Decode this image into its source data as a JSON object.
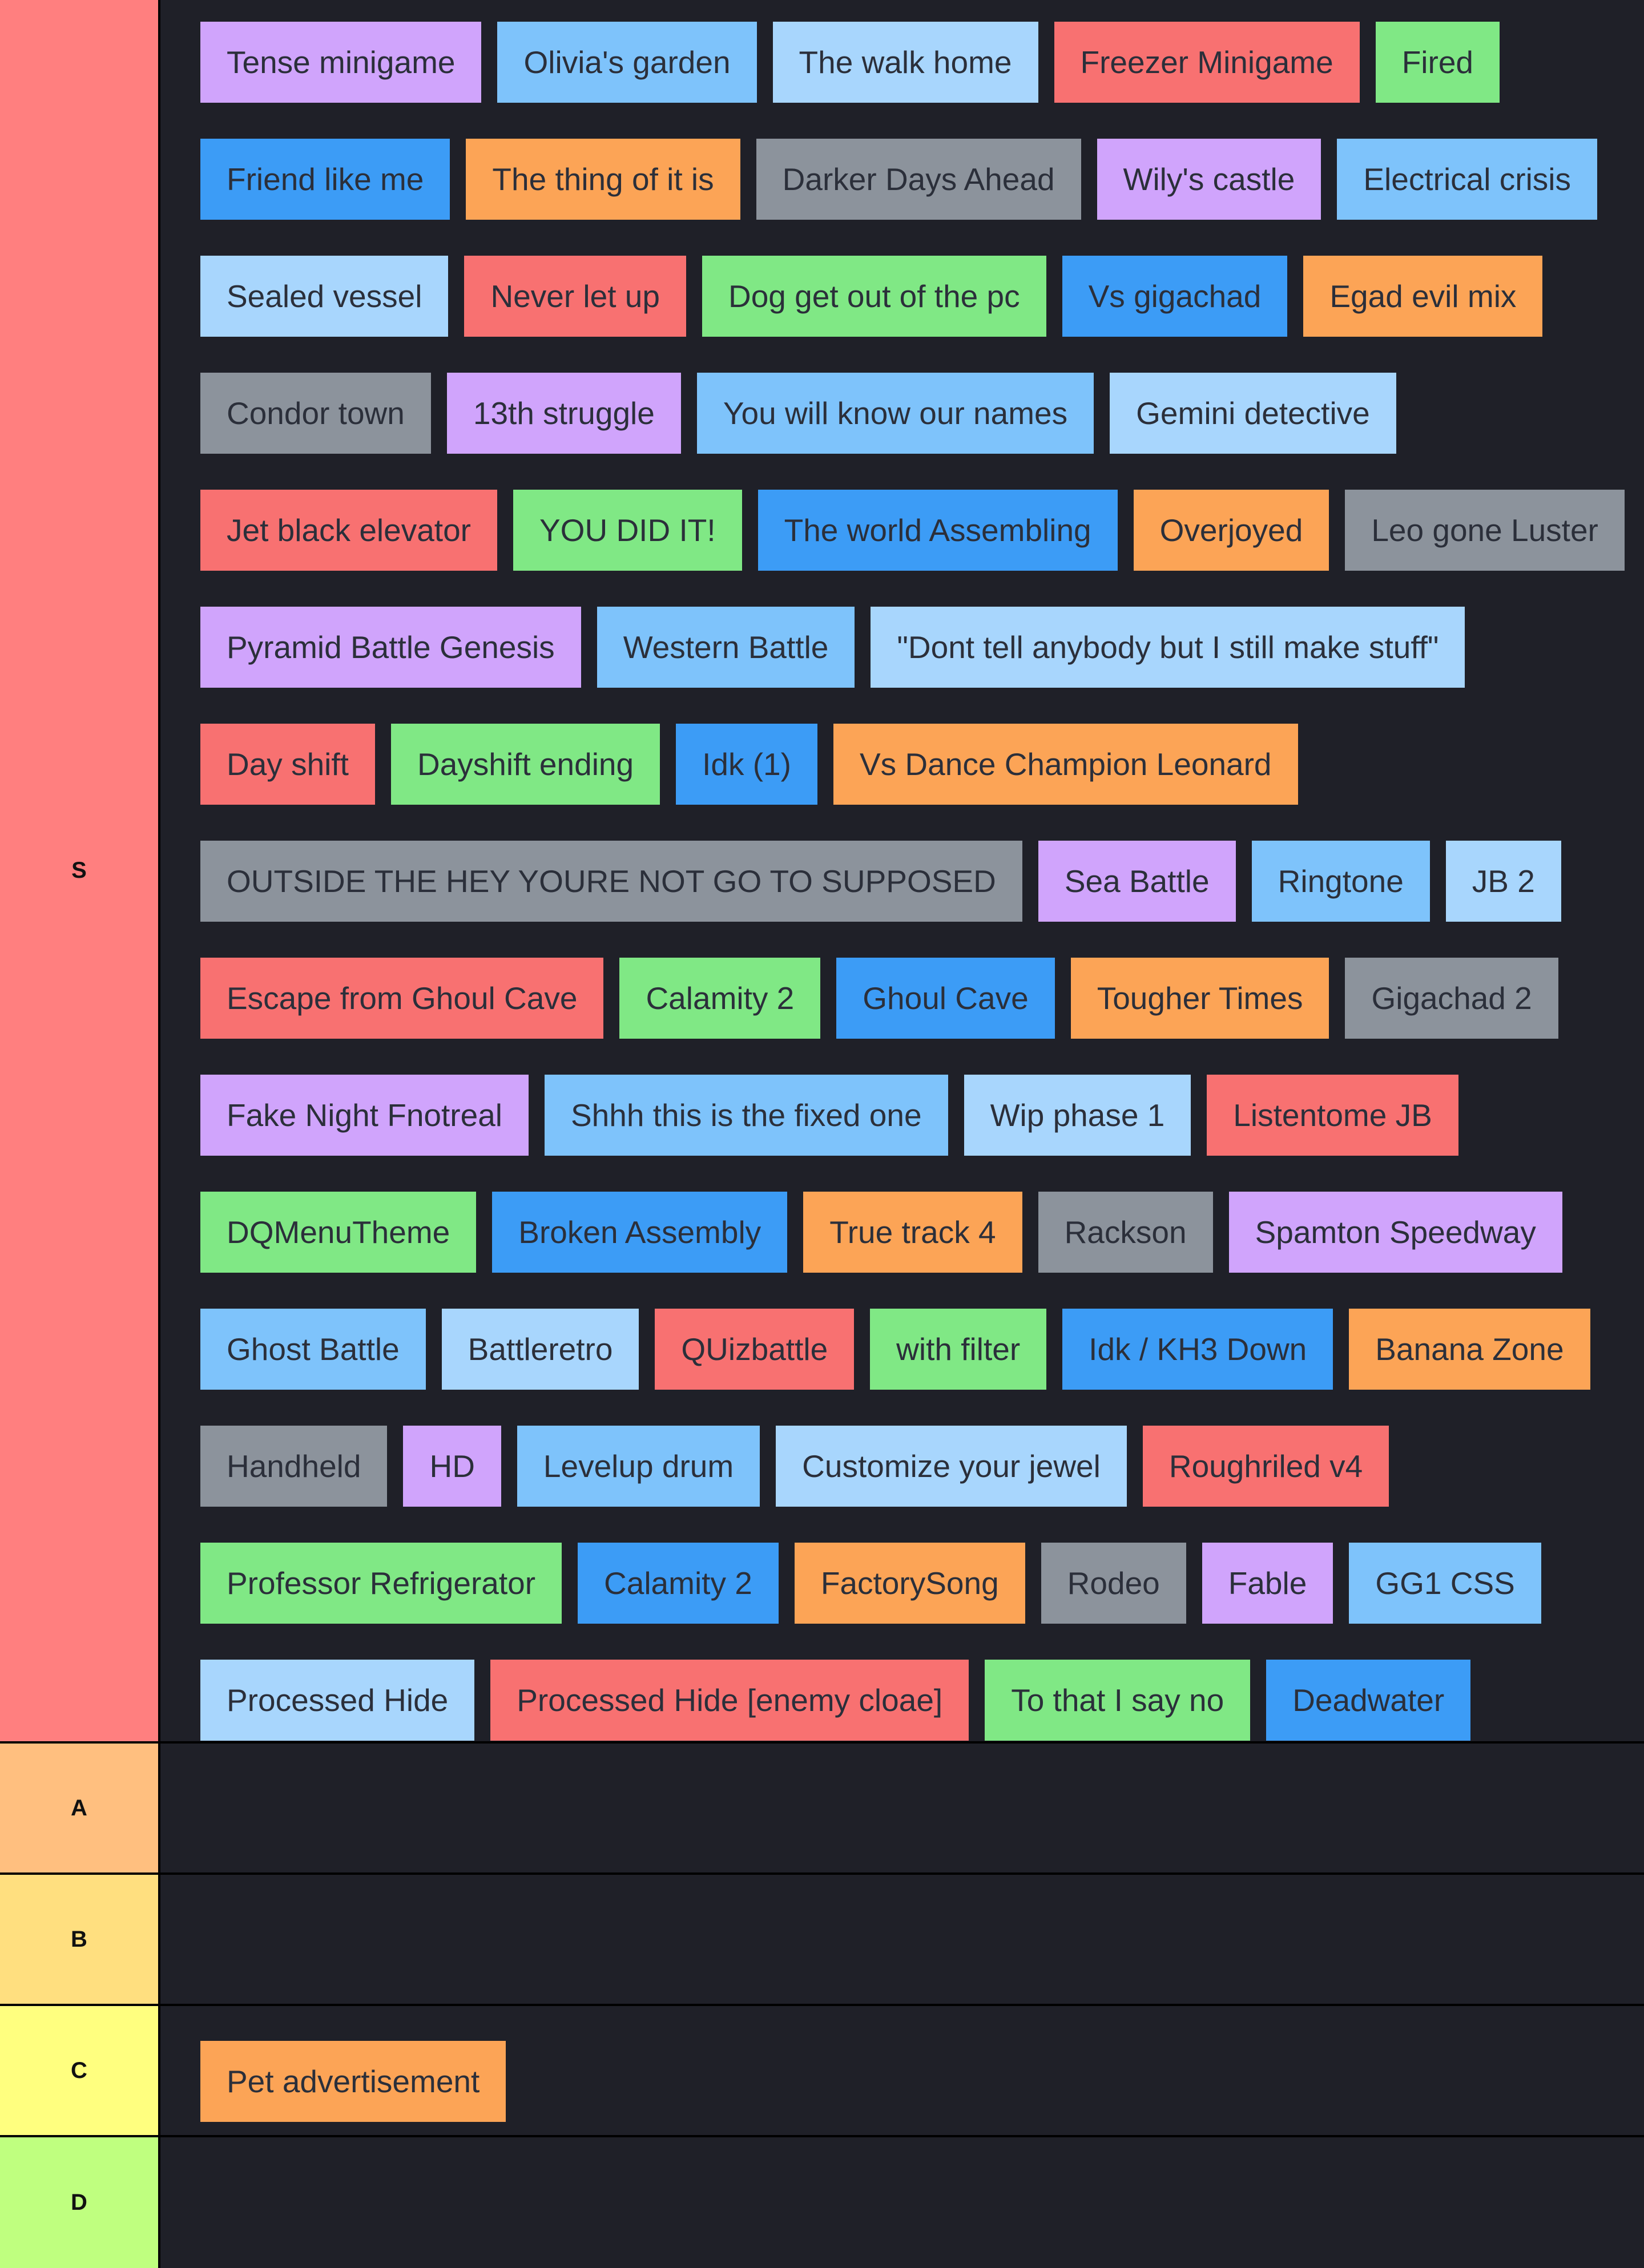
{
  "tiers": [
    {
      "label": "S",
      "color": "#ff7f7f",
      "rows": [
        [
          {
            "text": "Tense minigame",
            "color": "#d0a4fc"
          },
          {
            "text": "Olivia's garden",
            "color": "#7ec3fb"
          },
          {
            "text": "The walk home",
            "color": "#a8d6fd"
          },
          {
            "text": "Freezer Minigame",
            "color": "#f87171"
          },
          {
            "text": "Fired",
            "color": "#80e885"
          }
        ],
        [
          {
            "text": "Friend like me",
            "color": "#3c9cf6"
          },
          {
            "text": "The thing of it is",
            "color": "#fca456"
          },
          {
            "text": "Darker Days Ahead",
            "color": "#8c939c"
          },
          {
            "text": "Wily's castle",
            "color": "#d0a4fc"
          },
          {
            "text": "Electrical crisis",
            "color": "#7ec3fb"
          }
        ],
        [
          {
            "text": "Sealed vessel",
            "color": "#a8d6fd"
          },
          {
            "text": "Never let up",
            "color": "#f87171"
          },
          {
            "text": "Dog get out of the pc",
            "color": "#80e885"
          },
          {
            "text": "Vs gigachad",
            "color": "#3c9cf6"
          },
          {
            "text": "Egad evil mix",
            "color": "#fca456"
          }
        ],
        [
          {
            "text": "Condor town",
            "color": "#8c939c"
          },
          {
            "text": "13th struggle",
            "color": "#d0a4fc"
          },
          {
            "text": "You will know our names",
            "color": "#7ec3fb"
          },
          {
            "text": "Gemini detective",
            "color": "#a8d6fd"
          }
        ],
        [
          {
            "text": "Jet black elevator",
            "color": "#f87171"
          },
          {
            "text": "YOU DID IT!",
            "color": "#80e885"
          },
          {
            "text": "The world Assembling",
            "color": "#3c9cf6"
          },
          {
            "text": "Overjoyed",
            "color": "#fca456"
          },
          {
            "text": "Leo gone Luster",
            "color": "#8c939c"
          }
        ],
        [
          {
            "text": "Pyramid Battle Genesis",
            "color": "#d0a4fc"
          },
          {
            "text": "Western Battle",
            "color": "#7ec3fb"
          },
          {
            "text": "\"Dont tell anybody but I still make stuff\"",
            "color": "#a8d6fd"
          }
        ],
        [
          {
            "text": "Day shift",
            "color": "#f87171"
          },
          {
            "text": "Dayshift ending",
            "color": "#80e885"
          },
          {
            "text": "Idk (1)",
            "color": "#3c9cf6"
          },
          {
            "text": "Vs Dance Champion Leonard",
            "color": "#fca456"
          }
        ],
        [
          {
            "text": "OUTSIDE THE HEY YOURE NOT GO TO SUPPOSED",
            "color": "#8c939c"
          },
          {
            "text": "Sea Battle",
            "color": "#d0a4fc"
          },
          {
            "text": "Ringtone",
            "color": "#7ec3fb"
          },
          {
            "text": "JB 2",
            "color": "#a8d6fd"
          }
        ],
        [
          {
            "text": "Escape from Ghoul Cave",
            "color": "#f87171"
          },
          {
            "text": "Calamity 2",
            "color": "#80e885"
          },
          {
            "text": "Ghoul Cave",
            "color": "#3c9cf6"
          },
          {
            "text": "Tougher Times",
            "color": "#fca456"
          },
          {
            "text": "Gigachad 2",
            "color": "#8c939c"
          }
        ],
        [
          {
            "text": "Fake Night Fnotreal",
            "color": "#d0a4fc"
          },
          {
            "text": "Shhh this is the fixed one",
            "color": "#7ec3fb"
          },
          {
            "text": "Wip phase 1",
            "color": "#a8d6fd"
          },
          {
            "text": "Listentome JB",
            "color": "#f87171"
          }
        ],
        [
          {
            "text": "DQMenuTheme",
            "color": "#80e885"
          },
          {
            "text": "Broken Assembly",
            "color": "#3c9cf6"
          },
          {
            "text": "True track 4",
            "color": "#fca456"
          },
          {
            "text": "Rackson",
            "color": "#8c939c"
          },
          {
            "text": "Spamton Speedway",
            "color": "#d0a4fc"
          }
        ],
        [
          {
            "text": "Ghost Battle",
            "color": "#7ec3fb"
          },
          {
            "text": "Battleretro",
            "color": "#a8d6fd"
          },
          {
            "text": "QUizbattle",
            "color": "#f87171"
          },
          {
            "text": "with filter",
            "color": "#80e885"
          },
          {
            "text": "Idk / KH3 Down",
            "color": "#3c9cf6"
          },
          {
            "text": "Banana Zone",
            "color": "#fca456"
          }
        ],
        [
          {
            "text": "Handheld",
            "color": "#8c939c"
          },
          {
            "text": "HD",
            "color": "#d0a4fc"
          },
          {
            "text": "Levelup drum",
            "color": "#7ec3fb"
          },
          {
            "text": "Customize your jewel",
            "color": "#a8d6fd"
          },
          {
            "text": "Roughriled v4",
            "color": "#f87171"
          }
        ],
        [
          {
            "text": "Professor Refrigerator",
            "color": "#80e885"
          },
          {
            "text": "Calamity 2",
            "color": "#3c9cf6"
          },
          {
            "text": "FactorySong",
            "color": "#fca456"
          },
          {
            "text": "Rodeo",
            "color": "#8c939c"
          },
          {
            "text": "Fable",
            "color": "#d0a4fc"
          },
          {
            "text": "GG1 CSS",
            "color": "#7ec3fb"
          }
        ],
        [
          {
            "text": "Processed Hide",
            "color": "#a8d6fd"
          },
          {
            "text": "Processed Hide [enemy cloae]",
            "color": "#f87171"
          },
          {
            "text": "To that I say no",
            "color": "#80e885"
          },
          {
            "text": "Deadwater",
            "color": "#3c9cf6"
          }
        ]
      ]
    },
    {
      "label": "A",
      "color": "#ffbf7f",
      "rows": []
    },
    {
      "label": "B",
      "color": "#ffdf7f",
      "rows": []
    },
    {
      "label": "C",
      "color": "#ffff7f",
      "rows": [
        [
          {
            "text": "Pet advertisement",
            "color": "#fca456"
          }
        ]
      ]
    },
    {
      "label": "D",
      "color": "#bfff7f",
      "rows": []
    }
  ]
}
